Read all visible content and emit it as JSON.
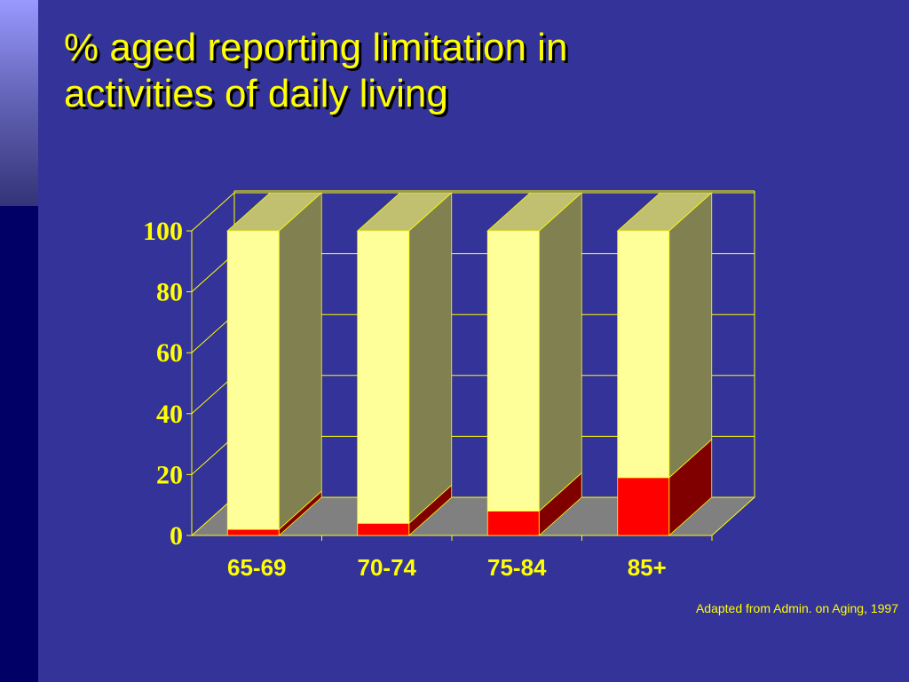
{
  "slide": {
    "title_line1": "% aged reporting limitation in",
    "title_line2": "activities of daily living",
    "source": "Adapted from Admin. on Aging, 1997"
  },
  "colors": {
    "background": "#333399",
    "sidebar": "#000066",
    "title": "#ffff00",
    "bar_top_segment": "#ffff99",
    "bar_bottom_segment": "#ff0000",
    "floor": "#808080"
  },
  "chart_data": {
    "type": "bar",
    "stacked": true,
    "three_d": true,
    "categories": [
      "65-69",
      "70-74",
      "75-84",
      "85+"
    ],
    "series": [
      {
        "values": [
          2,
          4,
          8,
          19
        ]
      },
      {
        "values": [
          98,
          96,
          92,
          81
        ]
      }
    ],
    "ylim": [
      0,
      100
    ],
    "yticks": [
      "0",
      "20",
      "40",
      "60",
      "80",
      "100"
    ],
    "grid": true,
    "legend": "none"
  }
}
